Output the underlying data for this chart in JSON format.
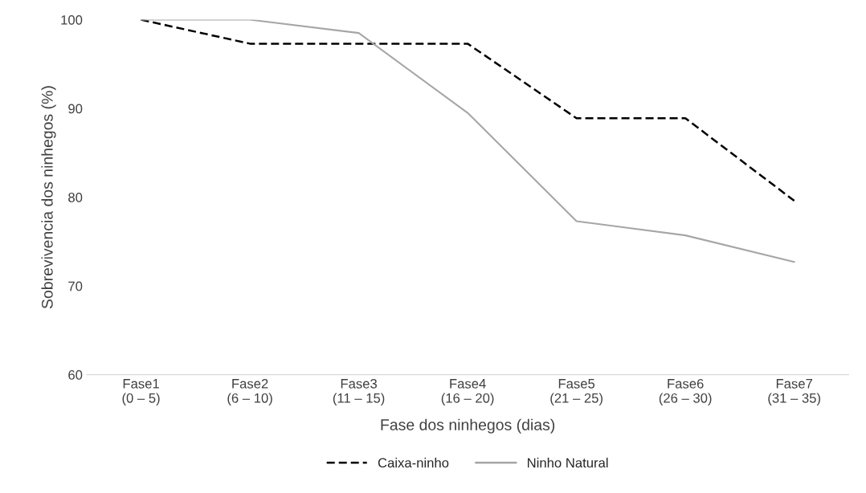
{
  "chart_data": {
    "type": "line",
    "categories": [
      "Fase1\n(0 – 5)",
      "Fase2\n(6 – 10)",
      "Fase3\n(11 – 15)",
      "Fase4\n(16 – 20)",
      "Fase5\n(21 – 25)",
      "Fase6\n(26 – 30)",
      "Fase7\n(31 – 35)"
    ],
    "series": [
      {
        "name": "Caixa-ninho",
        "color": "#000000",
        "line_style": "dashed",
        "values": [
          100,
          97.3,
          97.3,
          97.3,
          88.9,
          88.9,
          79.6
        ]
      },
      {
        "name": "Ninho Natural",
        "color": "#a6a6a6",
        "line_style": "solid",
        "values": [
          100,
          100,
          98.5,
          89.5,
          77.3,
          75.7,
          72.7
        ]
      }
    ],
    "xlabel": "Fase dos ninhegos (dias)",
    "ylabel": "Sobrevivencia dos ninhegos (%)",
    "ylim": [
      60,
      100
    ],
    "yticks": [
      60,
      70,
      80,
      90,
      100
    ],
    "grid": false,
    "legend": "bottom",
    "marker": "none"
  }
}
